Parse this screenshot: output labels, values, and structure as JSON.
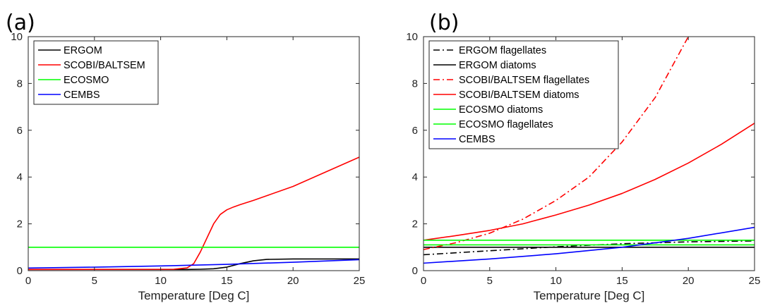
{
  "chart_data": [
    {
      "panel_label": "(a)",
      "type": "line",
      "xlabel": "Temperature [Deg C]",
      "ylabel": "",
      "xlim": [
        0,
        25
      ],
      "ylim": [
        0,
        10
      ],
      "xticks": [
        0,
        5,
        10,
        15,
        20,
        25
      ],
      "yticks": [
        0,
        2,
        4,
        6,
        8,
        10
      ],
      "grid": false,
      "legend_position": "top-left",
      "series": [
        {
          "name": "ERGOM",
          "color": "#000000",
          "dash": "solid",
          "x": [
            0,
            12,
            13,
            14,
            15,
            16,
            17,
            18,
            20,
            25
          ],
          "y": [
            0.05,
            0.05,
            0.06,
            0.08,
            0.15,
            0.3,
            0.42,
            0.48,
            0.5,
            0.5
          ]
        },
        {
          "name": "SCOBI/BALTSEM",
          "color": "#ff0000",
          "dash": "solid",
          "x": [
            0,
            11,
            12,
            12.5,
            13,
            13.5,
            14,
            14.5,
            15,
            15.5,
            16,
            17,
            18,
            20,
            22,
            25
          ],
          "y": [
            0.05,
            0.06,
            0.12,
            0.3,
            0.8,
            1.4,
            2.0,
            2.4,
            2.6,
            2.72,
            2.82,
            3.0,
            3.2,
            3.6,
            4.1,
            4.85
          ]
        },
        {
          "name": "ECOSMO",
          "color": "#00ff00",
          "dash": "solid",
          "x": [
            0,
            25
          ],
          "y": [
            1.0,
            1.0
          ]
        },
        {
          "name": "CEMBS",
          "color": "#0000ff",
          "dash": "solid",
          "x": [
            0,
            5,
            10,
            15,
            20,
            25
          ],
          "y": [
            0.11,
            0.15,
            0.2,
            0.27,
            0.36,
            0.47
          ]
        }
      ]
    },
    {
      "panel_label": "(b)",
      "type": "line",
      "xlabel": "Temperature [Deg C]",
      "ylabel": "",
      "xlim": [
        0,
        25
      ],
      "ylim": [
        0,
        10
      ],
      "xticks": [
        0,
        5,
        10,
        15,
        20,
        25
      ],
      "yticks": [
        0,
        2,
        4,
        6,
        8,
        10
      ],
      "grid": false,
      "legend_position": "top-left",
      "series": [
        {
          "name": "ERGOM flagellates",
          "color": "#000000",
          "dash": "dashdot",
          "x": [
            0,
            5,
            10,
            15,
            20,
            25
          ],
          "y": [
            0.68,
            0.85,
            1.02,
            1.15,
            1.23,
            1.27
          ]
        },
        {
          "name": "ERGOM diatoms",
          "color": "#000000",
          "dash": "solid",
          "x": [
            0,
            25
          ],
          "y": [
            1.0,
            1.0
          ]
        },
        {
          "name": "SCOBI/BALTSEM flagellates",
          "color": "#ff0000",
          "dash": "dashdot",
          "x": [
            0,
            2.5,
            5,
            7.5,
            10,
            12.5,
            15,
            17.5,
            20
          ],
          "y": [
            0.9,
            1.2,
            1.6,
            2.2,
            3.0,
            4.0,
            5.5,
            7.4,
            10.0
          ]
        },
        {
          "name": "SCOBI/BALTSEM diatoms",
          "color": "#ff0000",
          "dash": "solid",
          "x": [
            0,
            2.5,
            5,
            7.5,
            10,
            12.5,
            15,
            17.5,
            20,
            22.5,
            25
          ],
          "y": [
            1.3,
            1.5,
            1.72,
            2.0,
            2.38,
            2.8,
            3.3,
            3.9,
            4.6,
            5.4,
            6.3
          ]
        },
        {
          "name": "ECOSMO diatoms",
          "color": "#00ff00",
          "dash": "solid",
          "x": [
            0,
            25
          ],
          "y": [
            1.3,
            1.3
          ]
        },
        {
          "name": "ECOSMO flagellates",
          "color": "#00ff00",
          "dash": "solid",
          "x": [
            0,
            25
          ],
          "y": [
            1.1,
            1.1
          ]
        },
        {
          "name": "CEMBS",
          "color": "#0000ff",
          "dash": "solid",
          "x": [
            0,
            5,
            10,
            15,
            20,
            25
          ],
          "y": [
            0.32,
            0.5,
            0.72,
            1.0,
            1.38,
            1.85
          ]
        }
      ]
    }
  ]
}
